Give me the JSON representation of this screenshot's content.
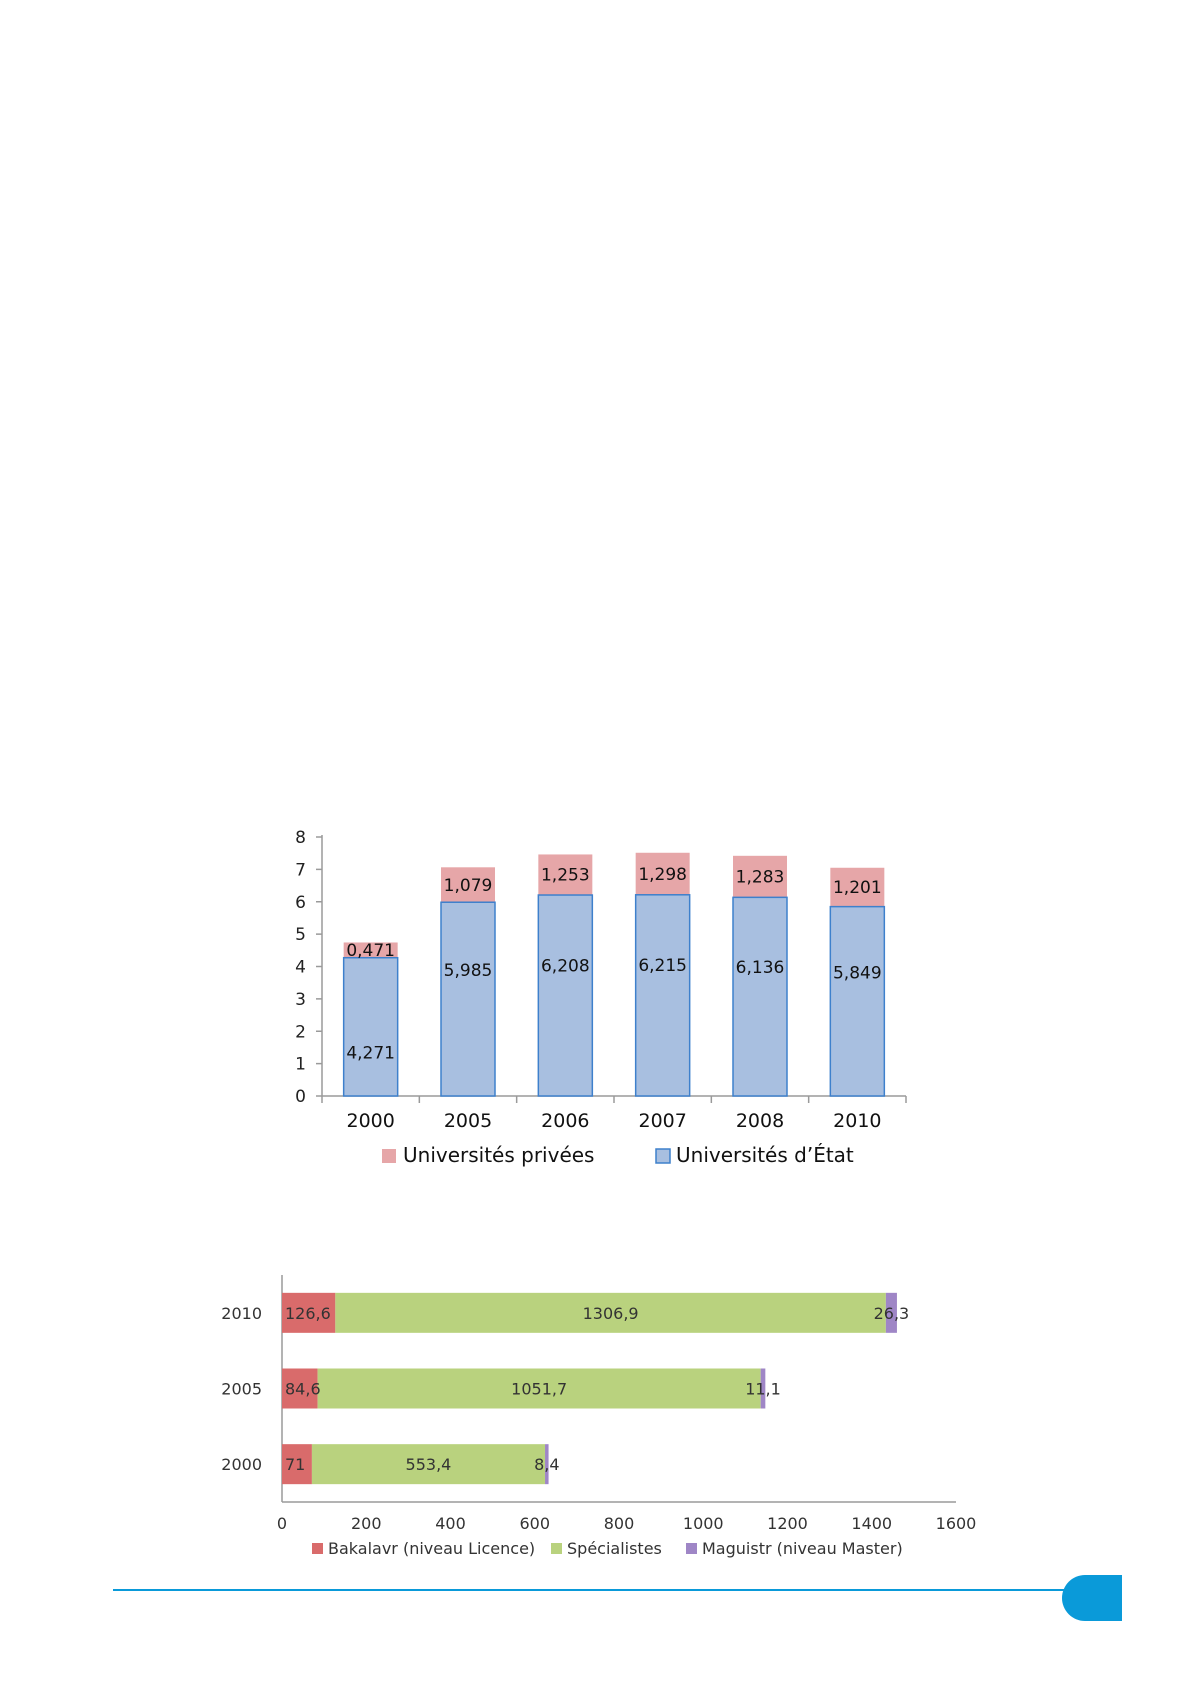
{
  "colors": {
    "prive": "#e6a6a8",
    "etat": "#a8bfe0",
    "etat_border": "#3e80cc",
    "bakalavr": "#d96b6b",
    "specialistes": "#b9d27e",
    "maguistr": "#9f86c6",
    "accent": "#0a9ad9"
  },
  "chart_data": [
    {
      "type": "bar",
      "stacked": true,
      "orientation": "vertical",
      "categories": [
        "2000",
        "2005",
        "2006",
        "2007",
        "2008",
        "2010"
      ],
      "series": [
        {
          "name": "Universités d’État",
          "values": [
            4.271,
            5.985,
            6.208,
            6.215,
            6.136,
            5.849
          ],
          "labels": [
            "4,271",
            "5,985",
            "6,208",
            "6,215",
            "6,136",
            "5,849"
          ]
        },
        {
          "name": "Universités privées",
          "values": [
            0.471,
            1.079,
            1.253,
            1.298,
            1.283,
            1.201
          ],
          "labels": [
            "0,471",
            "1,079",
            "1,253",
            "1,298",
            "1,283",
            "1,201"
          ]
        }
      ],
      "ylim": [
        0,
        8
      ],
      "yticks": [
        "0",
        "1",
        "2",
        "3",
        "4",
        "5",
        "6",
        "7",
        "8"
      ],
      "legend_items": [
        {
          "name": "Universités privées",
          "color": "#e6a6a8"
        },
        {
          "name": "Universités d’État",
          "color": "#a8bfe0"
        }
      ],
      "legend_position": "bottom",
      "grid": false
    },
    {
      "type": "bar",
      "stacked": true,
      "orientation": "horizontal",
      "categories": [
        "2010",
        "2005",
        "2000"
      ],
      "series": [
        {
          "name": "Bakalavr (niveau Licence)",
          "values": [
            126.6,
            84.6,
            71
          ],
          "labels": [
            "126,6",
            "84,6",
            "71"
          ]
        },
        {
          "name": "Spécialistes",
          "values": [
            1306.9,
            1051.7,
            553.4
          ],
          "labels": [
            "1306,9",
            "1051,7",
            "553,4"
          ]
        },
        {
          "name": "Maguistr (niveau Master)",
          "values": [
            26.3,
            11.1,
            8.4
          ],
          "labels": [
            "26,3",
            "11,1",
            "8,4"
          ]
        }
      ],
      "xlim": [
        0,
        1600
      ],
      "xticks": [
        "0",
        "200",
        "400",
        "600",
        "800",
        "1000",
        "1200",
        "1400",
        "1600"
      ],
      "legend_position": "bottom",
      "grid": false
    }
  ]
}
